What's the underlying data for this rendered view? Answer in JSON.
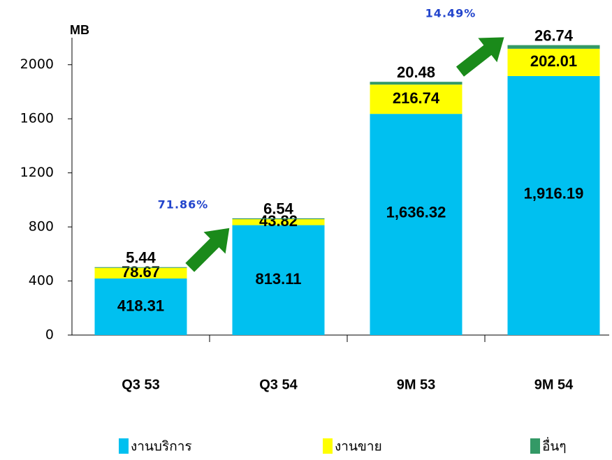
{
  "chart_data": {
    "type": "stacked_bar",
    "y_label": "MB",
    "categories": [
      "Q3 53",
      "Q3 54",
      "9M 53",
      "9M 54"
    ],
    "series": [
      {
        "name": "งานบริการ",
        "color": "#00c0f0",
        "values": [
          418.31,
          813.11,
          1636.32,
          1916.19
        ],
        "value_labels": [
          "418.31",
          "813.11",
          "1,636.32",
          "1,916.19"
        ]
      },
      {
        "name": "งานขาย",
        "color": "#ffff00",
        "values": [
          78.67,
          43.82,
          216.74,
          202.01
        ]
      },
      {
        "name": "อื่นๆ",
        "color": "#339966",
        "values": [
          5.44,
          6.54,
          20.48,
          26.74
        ]
      }
    ],
    "annotations": [
      "71.86%",
      "14.49%"
    ],
    "ylim": [
      0,
      2200
    ],
    "yticks": [
      0,
      400,
      800,
      1200,
      1600,
      2000
    ],
    "grid": false
  }
}
